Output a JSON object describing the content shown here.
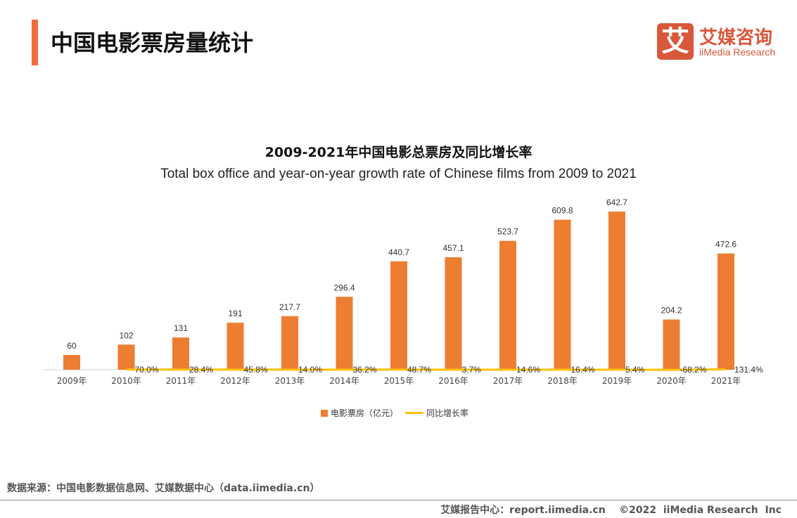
{
  "header": {
    "title": "中国电影票房量统计"
  },
  "logo": {
    "glyph": "艾",
    "cn": "艾媒咨询",
    "en": "iiMedia Research"
  },
  "chart_data": {
    "type": "bar+line",
    "title": "2009-2021年中国电影总票房及同比增长率",
    "subtitle": "Total box office and year-on-year growth rate of Chinese films from 2009 to 2021",
    "categories": [
      "2009年",
      "2010年",
      "2011年",
      "2012年",
      "2013年",
      "2014年",
      "2015年",
      "2016年",
      "2017年",
      "2018年",
      "2019年",
      "2020年",
      "2021年"
    ],
    "series": [
      {
        "name": "电影票房（亿元）",
        "type": "bar",
        "color": "#ed7d31",
        "values": [
          60,
          102,
          131,
          191,
          217.7,
          296.4,
          440.7,
          457.1,
          523.7,
          609.8,
          642.7,
          204.2,
          472.6
        ],
        "labels": [
          "60",
          "102",
          "131",
          "191",
          "217.7",
          "296.4",
          "440.7",
          "457.1",
          "523.7",
          "609.8",
          "642.7",
          "204.2",
          "472.6"
        ]
      },
      {
        "name": "同比增长率",
        "type": "line",
        "color": "#ffc000",
        "values": [
          null,
          70.0,
          28.4,
          45.8,
          14.0,
          36.2,
          48.7,
          3.7,
          14.6,
          16.4,
          5.4,
          -68.2,
          131.4
        ],
        "labels": [
          "",
          "70.0%",
          "28.4%",
          "45.8%",
          "14.0%",
          "36.2%",
          "48.7%",
          "3.7%",
          "14.6%",
          "16.4%",
          "5.4%",
          "-68.2%",
          "131.4%"
        ]
      }
    ],
    "legend": "bottom",
    "grid": false
  },
  "footer": {
    "source": "数据来源：中国电影数据信息网、艾媒数据中心（data.iimedia.cn）",
    "copyright": "艾媒报告中心：report.iimedia.cn    ©2022  iiMedia Research  Inc"
  }
}
